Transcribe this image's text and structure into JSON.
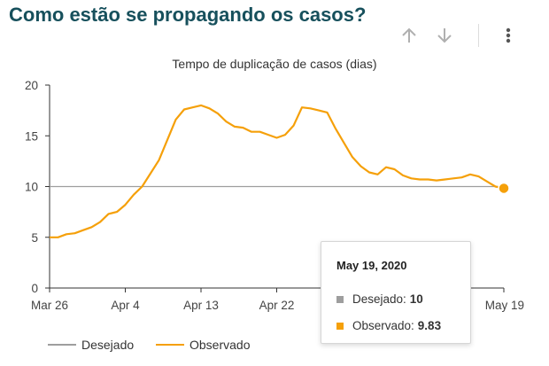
{
  "header": {
    "title": "Como estão se propagando os casos?"
  },
  "toolbar": {
    "up_icon": "arrow-up-icon",
    "down_icon": "arrow-down-icon",
    "menu_icon": "more-vertical-icon"
  },
  "colors": {
    "title": "#17505c",
    "observed": "#f5a00a",
    "desired": "#9e9e9e",
    "icon": "#b0b0b0"
  },
  "chart_data": {
    "type": "line",
    "title": "Tempo de duplicação de casos (dias)",
    "ylim": [
      0,
      20
    ],
    "yticks": [
      "0",
      "5",
      "10",
      "15",
      "20"
    ],
    "xticks": [
      "Mar 26",
      "Apr 4",
      "Apr 13",
      "Apr 22",
      "May 19"
    ],
    "x": [
      "2020-03-26",
      "2020-03-27",
      "2020-03-28",
      "2020-03-29",
      "2020-03-30",
      "2020-03-31",
      "2020-04-01",
      "2020-04-02",
      "2020-04-03",
      "2020-04-04",
      "2020-04-05",
      "2020-04-06",
      "2020-04-07",
      "2020-04-08",
      "2020-04-09",
      "2020-04-10",
      "2020-04-11",
      "2020-04-12",
      "2020-04-13",
      "2020-04-14",
      "2020-04-15",
      "2020-04-16",
      "2020-04-17",
      "2020-04-18",
      "2020-04-19",
      "2020-04-20",
      "2020-04-21",
      "2020-04-22",
      "2020-04-23",
      "2020-04-24",
      "2020-04-25",
      "2020-04-26",
      "2020-04-27",
      "2020-04-28",
      "2020-04-29",
      "2020-04-30",
      "2020-05-01",
      "2020-05-02",
      "2020-05-03",
      "2020-05-04",
      "2020-05-05",
      "2020-05-06",
      "2020-05-07",
      "2020-05-08",
      "2020-05-09",
      "2020-05-10",
      "2020-05-11",
      "2020-05-12",
      "2020-05-13",
      "2020-05-14",
      "2020-05-15",
      "2020-05-16",
      "2020-05-17",
      "2020-05-18",
      "2020-05-19"
    ],
    "series": [
      {
        "name": "Desejado",
        "values": [
          10,
          10,
          10,
          10,
          10,
          10,
          10,
          10,
          10,
          10,
          10,
          10,
          10,
          10,
          10,
          10,
          10,
          10,
          10,
          10,
          10,
          10,
          10,
          10,
          10,
          10,
          10,
          10,
          10,
          10,
          10,
          10,
          10,
          10,
          10,
          10,
          10,
          10,
          10,
          10,
          10,
          10,
          10,
          10,
          10,
          10,
          10,
          10,
          10,
          10,
          10,
          10,
          10,
          10,
          10
        ]
      },
      {
        "name": "Observado",
        "values": [
          5.0,
          5.0,
          5.3,
          5.4,
          5.7,
          6.0,
          6.5,
          7.3,
          7.5,
          8.2,
          9.2,
          10.0,
          11.3,
          12.6,
          14.6,
          16.6,
          17.6,
          17.8,
          18.0,
          17.7,
          17.2,
          16.4,
          15.9,
          15.8,
          15.4,
          15.4,
          15.1,
          14.8,
          15.1,
          16.0,
          17.8,
          17.7,
          17.5,
          17.3,
          15.7,
          14.3,
          12.9,
          12.0,
          11.4,
          11.2,
          11.9,
          11.7,
          11.1,
          10.8,
          10.7,
          10.7,
          10.6,
          10.7,
          10.8,
          10.9,
          11.2,
          11.0,
          10.5,
          10.0,
          9.83
        ]
      }
    ],
    "legend_position": "bottom-left",
    "grid": false
  },
  "legend": {
    "desired_label": "Desejado",
    "observed_label": "Observado"
  },
  "tooltip": {
    "date": "May 19, 2020",
    "desired_label": "Desejado:",
    "desired_value": "10",
    "observed_label": "Observado:",
    "observed_value": "9.83"
  }
}
